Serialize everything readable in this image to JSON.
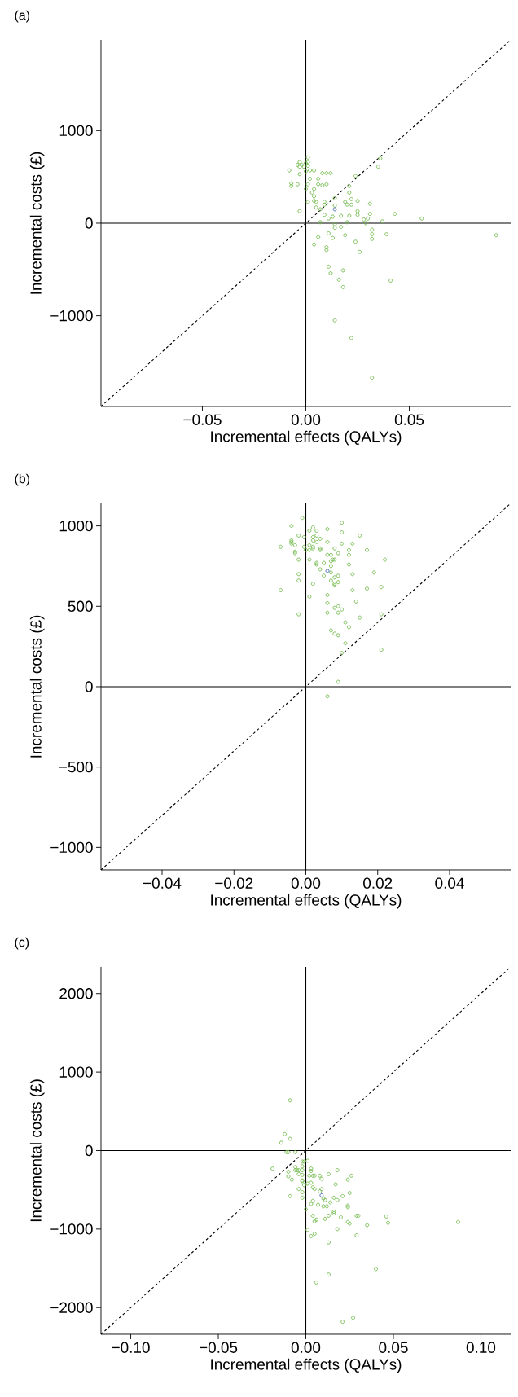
{
  "chart_data": [
    {
      "type": "scatter",
      "title": "(a)",
      "xlabel": "Incremental effects (QALYs)",
      "ylabel": "Incremental costs (£)",
      "xlim": [
        -0.099,
        0.099
      ],
      "ylim": [
        -1980,
        1980
      ],
      "xticks": [
        {
          "value": -0.05,
          "label": "−0.05"
        },
        {
          "value": 0,
          "label": "0.00"
        },
        {
          "value": 0.05,
          "label": "0.05"
        }
      ],
      "yticks": [
        {
          "value": -1000,
          "label": "−1000"
        },
        0,
        1000
      ],
      "series": [
        {
          "type": "line",
          "color": "#000000",
          "line_style": "dashed",
          "marker": "none",
          "x": [
            -0.099,
            0.099
          ],
          "values": [
            -1980,
            1980
          ]
        },
        {
          "type": "line",
          "color": "#000000",
          "line_style": "solid",
          "marker": "none",
          "x": [
            0,
            0
          ],
          "values": [
            -1980,
            1980
          ]
        },
        {
          "type": "line",
          "color": "#000000",
          "line_style": "solid",
          "marker": "none",
          "x": [
            -0.099,
            0.099
          ],
          "values": [
            0,
            0
          ]
        },
        {
          "color": "#6db846",
          "marker": "circle",
          "x": [
            -0.008,
            -0.007,
            -0.007,
            -0.004,
            -0.004,
            -0.003,
            -0.003,
            -0.003,
            -0.002,
            -0.001,
            0.0,
            0.001,
            0.001,
            0.001,
            0.0,
            0.002,
            0.004,
            0.0,
            0.001,
            0.002,
            0.004,
            0.006,
            0.008,
            0.01,
            0.012,
            0.006,
            0.008,
            0.01,
            0.003,
            0.004,
            0.004,
            0.001,
            0.005,
            0.005,
            0.007,
            0.009,
            0.009,
            0.009,
            0.011,
            0.013,
            0.014,
            0.014,
            0.019,
            0.02,
            0.022,
            0.022,
            0.021,
            0.021,
            0.024,
            0.025,
            0.025,
            0.025,
            0.021,
            0.017,
            0.031,
            0.031,
            0.028,
            0.03,
            0.029,
            0.037,
            0.035,
            0.036,
            0.043,
            0.056,
            0.092,
            -0.003,
            0.007,
            0.014,
            0.014,
            0.017,
            0.02,
            0.011,
            0.013,
            0.019,
            0.004,
            0.006,
            0.01,
            0.01,
            0.024,
            0.026,
            0.032,
            0.032,
            0.032,
            0.039,
            0.011,
            0.012,
            0.018,
            0.016,
            0.018,
            0.041,
            0.014,
            0.022,
            0.032
          ],
          "values": [
            570,
            430,
            400,
            420,
            630,
            660,
            610,
            530,
            630,
            610,
            650,
            660,
            710,
            620,
            560,
            570,
            570,
            370,
            420,
            480,
            370,
            480,
            540,
            540,
            540,
            420,
            410,
            420,
            330,
            290,
            240,
            230,
            230,
            170,
            150,
            230,
            200,
            90,
            50,
            70,
            270,
            190,
            230,
            200,
            260,
            200,
            330,
            400,
            510,
            240,
            130,
            90,
            80,
            80,
            210,
            100,
            40,
            50,
            0,
            20,
            610,
            700,
            100,
            50,
            -130,
            130,
            10,
            -10,
            -50,
            -40,
            10,
            -110,
            -160,
            -130,
            -230,
            -150,
            -260,
            -290,
            -200,
            -310,
            -70,
            -120,
            -170,
            -120,
            -470,
            -540,
            -510,
            -610,
            -690,
            -620,
            -1050,
            -1240,
            -1670
          ]
        },
        {
          "color": "#3a62b0",
          "marker": "circle",
          "x": [
            0.014
          ],
          "values": [
            150
          ]
        }
      ]
    },
    {
      "type": "scatter",
      "title": "(b)",
      "xlabel": "Incremental effects (QALYs)",
      "ylabel": "Incremental costs (£)",
      "xlim": [
        -0.057,
        0.057
      ],
      "ylim": [
        -1140,
        1140
      ],
      "xticks": [
        {
          "value": -0.04,
          "label": "−0.04"
        },
        {
          "value": -0.02,
          "label": "−0.02"
        },
        {
          "value": 0,
          "label": "0.00"
        },
        {
          "value": 0.02,
          "label": "0.02"
        },
        {
          "value": 0.04,
          "label": "0.04"
        }
      ],
      "yticks": [
        {
          "value": -1000,
          "label": "−1000"
        },
        {
          "value": -500,
          "label": "−500"
        },
        0,
        500,
        1000
      ],
      "series": [
        {
          "type": "line",
          "color": "#000000",
          "line_style": "dashed",
          "marker": "none",
          "x": [
            -0.057,
            0.057
          ],
          "values": [
            -1140,
            1140
          ]
        },
        {
          "type": "line",
          "color": "#000000",
          "line_style": "solid",
          "marker": "none",
          "x": [
            0,
            0
          ],
          "values": [
            -1140,
            1140
          ]
        },
        {
          "type": "line",
          "color": "#000000",
          "line_style": "solid",
          "marker": "none",
          "x": [
            -0.057,
            0.057
          ],
          "values": [
            0,
            0
          ]
        },
        {
          "color": "#6db846",
          "marker": "circle",
          "x": [
            -0.001,
            -0.004,
            0.002,
            0.01,
            0.001,
            0.003,
            0.006,
            0.01,
            0.003,
            -0.002,
            -0.0005,
            0.002,
            0.004,
            0.015,
            -0.004,
            -0.004,
            -0.004,
            0.002,
            0.003,
            0.006,
            0.01,
            0.013,
            -0.007,
            -0.003,
            -0.0005,
            0.001,
            0.002,
            0.002,
            0.0,
            0.001,
            0.004,
            0.004,
            0.008,
            0.012,
            0.017,
            -0.003,
            -0.003,
            0.006,
            0.007,
            0.009,
            0.012,
            -0.002,
            0.001,
            0.0075,
            0.008,
            0.022,
            0.003,
            0.003,
            0.005,
            0.007,
            0.007,
            0.012,
            0.004,
            0.007,
            0.013,
            0.019,
            -0.002,
            0.005,
            0.008,
            0.009,
            -0.002,
            0.007,
            0.009,
            0.008,
            0.008,
            0.002,
            0.013,
            0.017,
            0.021,
            -0.007,
            0.006,
            0.001,
            0.006,
            0.014,
            0.008,
            0.009,
            0.01,
            0.006,
            0.009,
            -0.002,
            0.015,
            0.021,
            0.011,
            0.012,
            0.007,
            0.008,
            0.009,
            0.011,
            0.01,
            0.021,
            0.009,
            0.006
          ],
          "values": [
            1050,
            1000,
            990,
            1020,
            970,
            970,
            980,
            960,
            940,
            940,
            930,
            930,
            920,
            940,
            910,
            890,
            900,
            910,
            900,
            900,
            890,
            890,
            870,
            880,
            870,
            880,
            870,
            860,
            850,
            850,
            860,
            850,
            860,
            850,
            850,
            840,
            830,
            820,
            820,
            830,
            820,
            790,
            790,
            790,
            790,
            790,
            770,
            760,
            770,
            780,
            750,
            760,
            730,
            710,
            700,
            710,
            700,
            690,
            680,
            690,
            660,
            660,
            650,
            640,
            630,
            640,
            600,
            610,
            620,
            600,
            570,
            560,
            520,
            530,
            490,
            500,
            480,
            460,
            460,
            450,
            430,
            450,
            400,
            370,
            350,
            330,
            320,
            270,
            210,
            230,
            30,
            -60
          ]
        },
        {
          "color": "#3a62b0",
          "marker": "circle",
          "x": [
            0.006
          ],
          "values": [
            720
          ]
        }
      ]
    },
    {
      "type": "scatter",
      "title": "(c)",
      "xlabel": "Incremental effects (QALYs)",
      "ylabel": "Incremental costs (£)",
      "xlim": [
        -0.117,
        0.117
      ],
      "ylim": [
        -2340,
        2340
      ],
      "xticks": [
        {
          "value": -0.1,
          "label": "−0.10"
        },
        {
          "value": -0.05,
          "label": "−0.05"
        },
        {
          "value": 0,
          "label": "0.00"
        },
        {
          "value": 0.05,
          "label": "0.05"
        },
        {
          "value": 0.1,
          "label": "0.10"
        }
      ],
      "yticks": [
        {
          "value": -2000,
          "label": "−2000"
        },
        {
          "value": -1000,
          "label": "−1000"
        },
        0,
        1000,
        2000
      ],
      "series": [
        {
          "type": "line",
          "color": "#000000",
          "line_style": "dashed",
          "marker": "none",
          "x": [
            -0.117,
            0.117
          ],
          "values": [
            -2340,
            2340
          ]
        },
        {
          "type": "line",
          "color": "#000000",
          "line_style": "solid",
          "marker": "none",
          "x": [
            0,
            0
          ],
          "values": [
            -2340,
            2340
          ]
        },
        {
          "type": "line",
          "color": "#000000",
          "line_style": "solid",
          "marker": "none",
          "x": [
            -0.117,
            0.117
          ],
          "values": [
            0,
            0
          ]
        },
        {
          "color": "#6db846",
          "marker": "circle",
          "x": [
            -0.009,
            -0.012,
            -0.014,
            -0.009,
            -0.011,
            -0.01,
            -0.006,
            -0.019,
            -0.01,
            -0.01,
            -0.008,
            -0.009,
            -0.006,
            -0.006,
            -0.005,
            -0.004,
            -0.004,
            -0.002,
            -0.001,
            0.001,
            -0.002,
            -0.002,
            -0.002,
            -0.002,
            -0.002,
            -0.004,
            -0.001,
            -0.002,
            -0.002,
            0.0,
            0.002,
            0.003,
            0.003,
            0.004,
            0.005,
            0.003,
            0.001,
            0.004,
            0.005,
            0.008,
            0.009,
            0.013,
            0.018,
            0.026,
            0.024,
            0.017,
            0.025,
            0.008,
            0.009,
            0.01,
            0.011,
            0.014,
            0.004,
            0.003,
            0.007,
            0.01,
            0.012,
            0.016,
            0.018,
            0.021,
            0.024,
            0.024,
            0.016,
            0.016,
            0.004,
            0.006,
            0.005,
            0.011,
            0.013,
            0.02,
            0.024,
            0.025,
            0.029,
            0.03,
            0.035,
            0.029,
            0.018,
            0.001,
            0.003,
            0.005,
            0.013,
            0.046,
            0.047,
            0.087,
            0.04,
            0.013,
            0.006,
            0.021,
            0.027
          ],
          "values": [
            640,
            210,
            100,
            150,
            -20,
            -20,
            -20,
            -230,
            -270,
            -330,
            -370,
            -580,
            -210,
            -250,
            -250,
            -250,
            -300,
            -140,
            -140,
            -130,
            -200,
            -250,
            -310,
            -380,
            -390,
            -490,
            -440,
            -530,
            -600,
            -750,
            -320,
            -230,
            -260,
            -320,
            -320,
            -410,
            -420,
            -470,
            -490,
            -320,
            -360,
            -300,
            -250,
            -320,
            -370,
            -430,
            -540,
            -520,
            -490,
            -610,
            -630,
            -660,
            -640,
            -680,
            -690,
            -710,
            -710,
            -600,
            -630,
            -580,
            -720,
            -700,
            -780,
            -800,
            -830,
            -880,
            -900,
            -870,
            -830,
            -850,
            -910,
            -930,
            -830,
            -830,
            -950,
            -1080,
            -1000,
            -1010,
            -1090,
            -1060,
            -1170,
            -840,
            -920,
            -910,
            -1510,
            -1580,
            -1680,
            -2180,
            -2130
          ]
        },
        {
          "color": "#3a62b0",
          "marker": "circle",
          "x": [
            0.009
          ],
          "values": [
            -570
          ]
        }
      ]
    }
  ]
}
